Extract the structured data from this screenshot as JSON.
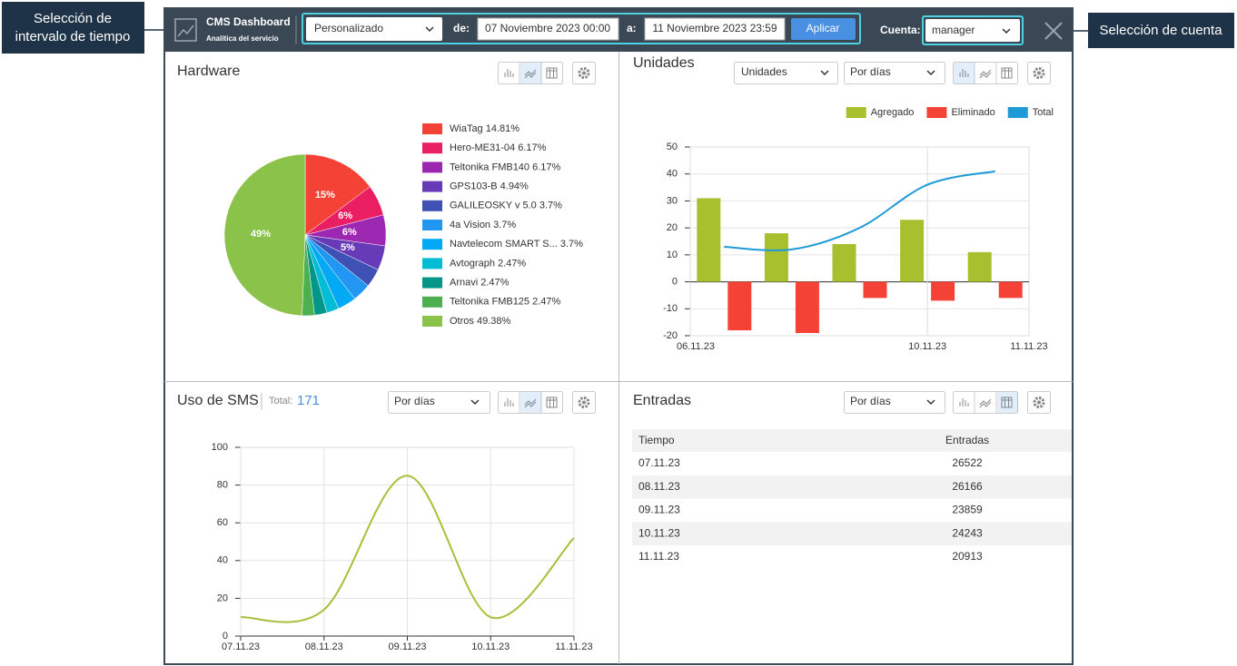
{
  "callouts": {
    "time_range": [
      "Selección de",
      "intervalo de tiempo"
    ],
    "account": "Selección de cuenta"
  },
  "header": {
    "title": "CMS Dashboard",
    "subtitle": "Analítica del servicio",
    "range_type": "Personalizado",
    "from_label": "de:",
    "from": "07 Noviembre 2023 00:00",
    "to_label": "a:",
    "to": "11 Noviembre 2023 23:59",
    "apply": "Aplicar",
    "account_label": "Cuenta:",
    "account": "manager"
  },
  "controls": {
    "unidades_metric": "Unidades",
    "unidades_period": "Por días",
    "sms_period": "Por días",
    "entradas_period": "Por días"
  },
  "sms_total": {
    "label": "Total:",
    "value": "171"
  },
  "chart_data": [
    {
      "type": "pie",
      "title": "Hardware",
      "categories": [
        "WiaTag 14.81%",
        "Hero-ME31-04 6.17%",
        "Teltonika FMB140 6.17%",
        "GPS103-B 4.94%",
        "GALILEOSKY v 5.0 3.7%",
        "4a Vision 3.7%",
        "Navtelecom SMART S... 3.7%",
        "Avtograph 2.47%",
        "Arnavi 2.47%",
        "Teltonika FMB125 2.47%",
        "Otros 49.38%"
      ],
      "values": [
        14.81,
        6.17,
        6.17,
        4.94,
        3.7,
        3.7,
        3.7,
        2.47,
        2.47,
        2.47,
        49.38
      ],
      "value_labels": [
        "15%",
        "6%",
        "6%",
        "5%",
        null,
        null,
        null,
        null,
        null,
        null,
        "49%"
      ],
      "colors": [
        "#f44336",
        "#e91e63",
        "#9c27b0",
        "#673ab7",
        "#3f51b5",
        "#2196f3",
        "#03a9f4",
        "#00bcd4",
        "#009688",
        "#4caf50",
        "#8bc34a"
      ]
    },
    {
      "type": "bar",
      "title": "Unidades",
      "categories": [
        null,
        null,
        null,
        "10.11.23",
        null
      ],
      "x_range_labels": [
        "06.11.23",
        "11.11.23"
      ],
      "series": [
        {
          "name": "Agregado",
          "color": "#a8bf2e",
          "values": [
            31,
            18,
            14,
            23,
            11
          ]
        },
        {
          "name": "Eliminado",
          "color": "#f44336",
          "values": [
            -18,
            -19,
            -6,
            -7,
            -6
          ]
        },
        {
          "name": "Total",
          "color": "#1e9bd7",
          "type": "line",
          "values": [
            13,
            12,
            20,
            36,
            41
          ]
        }
      ],
      "ylim": [
        -20,
        50
      ],
      "yticks": [
        -20,
        -10,
        0,
        10,
        20,
        30,
        40,
        50
      ],
      "grid": true,
      "legend": "top-right"
    },
    {
      "type": "line",
      "title": "Uso de SMS",
      "categories": [
        "07.11.23",
        "08.11.23",
        "09.11.23",
        "10.11.23",
        "11.11.23"
      ],
      "values": [
        10,
        14,
        85,
        10,
        52
      ],
      "color": "#a5c13a",
      "ylim": [
        0,
        100
      ],
      "yticks": [
        0,
        20,
        40,
        60,
        80,
        100
      ],
      "grid": true
    }
  ],
  "table": {
    "title": "Entradas",
    "columns": [
      "Tiempo",
      "Entradas"
    ],
    "rows": [
      [
        "07.11.23",
        "26522"
      ],
      [
        "08.11.23",
        "26166"
      ],
      [
        "09.11.23",
        "23859"
      ],
      [
        "10.11.23",
        "24243"
      ],
      [
        "11.11.23",
        "20913"
      ]
    ]
  }
}
